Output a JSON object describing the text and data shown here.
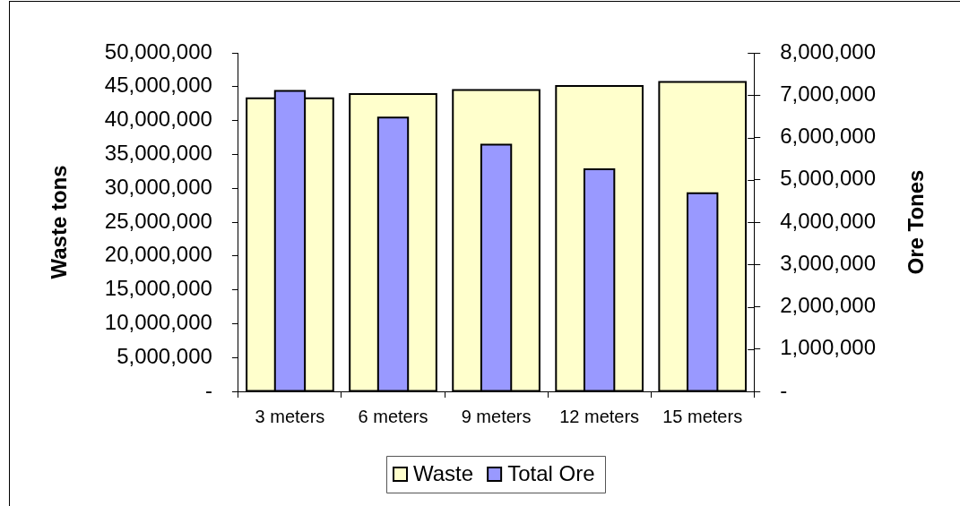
{
  "chart_data": {
    "type": "bar",
    "categories": [
      "3 meters",
      "6 meters",
      "9 meters",
      "12 meters",
      "15 meters"
    ],
    "series": [
      {
        "name": "Waste",
        "color": "#ffffcc",
        "values": [
          43300000,
          43900000,
          44500000,
          45100000,
          45700000
        ]
      },
      {
        "name": "Total Ore",
        "color": "#9999ff",
        "axis": "y2",
        "values": [
          7100000,
          6470000,
          5830000,
          5250000,
          4680000
        ]
      }
    ],
    "ylabel": "Waste tons",
    "y2label": "Ore Tones",
    "ylim": [
      0,
      50000000
    ],
    "yticks": [
      {
        "value": 0,
        "label": "-"
      },
      {
        "value": 5000000,
        "label": "5,000,000"
      },
      {
        "value": 10000000,
        "label": "10,000,000"
      },
      {
        "value": 15000000,
        "label": "15,000,000"
      },
      {
        "value": 20000000,
        "label": "20,000,000"
      },
      {
        "value": 25000000,
        "label": "25,000,000"
      },
      {
        "value": 30000000,
        "label": "30,000,000"
      },
      {
        "value": 35000000,
        "label": "35,000,000"
      },
      {
        "value": 40000000,
        "label": "40,000,000"
      },
      {
        "value": 45000000,
        "label": "45,000,000"
      },
      {
        "value": 50000000,
        "label": "50,000,000"
      }
    ],
    "y2lim": [
      0,
      8000000
    ],
    "y2ticks": [
      {
        "value": 0,
        "label": "-"
      },
      {
        "value": 1000000,
        "label": "1,000,000"
      },
      {
        "value": 2000000,
        "label": "2,000,000"
      },
      {
        "value": 3000000,
        "label": "3,000,000"
      },
      {
        "value": 4000000,
        "label": "4,000,000"
      },
      {
        "value": 5000000,
        "label": "5,000,000"
      },
      {
        "value": 6000000,
        "label": "6,000,000"
      },
      {
        "value": 7000000,
        "label": "7,000,000"
      },
      {
        "value": 8000000,
        "label": "8,000,000"
      }
    ],
    "grid": false,
    "legend": "bottom"
  }
}
